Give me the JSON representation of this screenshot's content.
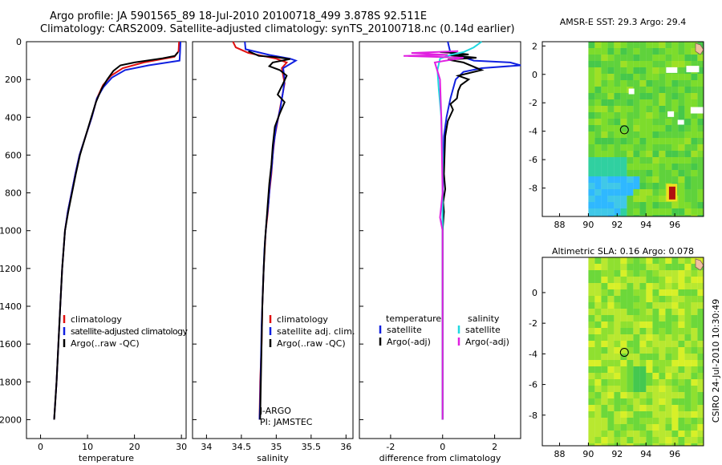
{
  "header": {
    "line1": "Argo profile: JA 5901565_89 18-Jul-2010 20100718_499 3.878S 92.511E",
    "line2": "Climatology: CARS2009. Satellite-adjusted climatology: synTS_20100718.nc (0.14d earlier)"
  },
  "credit": "CSIRO 24-Jul-2010 10:30:49",
  "chart_data": [
    {
      "type": "line",
      "xlabel": "temperature",
      "xlim": [
        -3,
        31
      ],
      "xticks": [
        "0",
        "10",
        "20",
        "30"
      ],
      "ylim": [
        2100,
        0
      ],
      "yticks": [
        "0",
        "200",
        "400",
        "600",
        "800",
        "1000",
        "1200",
        "1400",
        "1600",
        "1800",
        "2000"
      ],
      "legend": [
        "climatology",
        "satellite-adjusted climatology",
        "Argo(..raw -QC)"
      ],
      "colors": [
        "#e01010",
        "#1020e0",
        "#000000"
      ],
      "series": [
        {
          "name": "climatology",
          "points": [
            [
              29.5,
              0
            ],
            [
              29.4,
              50
            ],
            [
              28.5,
              80
            ],
            [
              22,
              110
            ],
            [
              17.5,
              140
            ],
            [
              15,
              180
            ],
            [
              13.3,
              230
            ],
            [
              12,
              300
            ],
            [
              10.9,
              400
            ],
            [
              9.6,
              500
            ],
            [
              8.3,
              600
            ],
            [
              7.4,
              700
            ],
            [
              6.6,
              800
            ],
            [
              5.8,
              900
            ],
            [
              5.2,
              1000
            ],
            [
              4.6,
              1200
            ],
            [
              4.2,
              1400
            ],
            [
              3.8,
              1600
            ],
            [
              3.4,
              1800
            ],
            [
              2.9,
              2000
            ]
          ]
        },
        {
          "name": "satellite-adjusted climatology",
          "points": [
            [
              29.8,
              0
            ],
            [
              29.7,
              60
            ],
            [
              29.6,
              100
            ],
            [
              23,
              125
            ],
            [
              18,
              150
            ],
            [
              15.2,
              190
            ],
            [
              13.4,
              240
            ],
            [
              12,
              300
            ],
            [
              10.9,
              400
            ],
            [
              9.6,
              500
            ],
            [
              8.3,
              600
            ],
            [
              7.4,
              700
            ],
            [
              6.6,
              800
            ],
            [
              5.8,
              900
            ],
            [
              5.2,
              1000
            ],
            [
              4.6,
              1200
            ],
            [
              4.2,
              1400
            ],
            [
              3.8,
              1600
            ],
            [
              3.4,
              1800
            ],
            [
              2.9,
              2000
            ]
          ]
        },
        {
          "name": "Argo(..raw -QC)",
          "points": [
            [
              29.3,
              55
            ],
            [
              28.6,
              75
            ],
            [
              26,
              88
            ],
            [
              20,
              110
            ],
            [
              17,
              125
            ],
            [
              15.5,
              155
            ],
            [
              14.2,
              200
            ],
            [
              13,
              250
            ],
            [
              11.8,
              320
            ],
            [
              10.8,
              400
            ],
            [
              9.6,
              500
            ],
            [
              8.4,
              600
            ],
            [
              7.5,
              700
            ],
            [
              6.7,
              800
            ],
            [
              5.9,
              900
            ],
            [
              5.2,
              1000
            ],
            [
              4.6,
              1200
            ],
            [
              4.2,
              1400
            ],
            [
              3.8,
              1600
            ],
            [
              3.4,
              1800
            ],
            [
              2.9,
              2000
            ]
          ]
        }
      ],
      "notes": []
    },
    {
      "type": "line",
      "xlabel": "salinity",
      "xlim": [
        33.8,
        36.1
      ],
      "xticks": [
        "34",
        "34.5",
        "35",
        "35.5",
        "36"
      ],
      "ylim": [
        2100,
        0
      ],
      "yticks": [],
      "legend": [
        "climatology",
        "satellite adj. clim.",
        "Argo(..raw -QC)"
      ],
      "colors": [
        "#e01010",
        "#1020e0",
        "#000000"
      ],
      "series": [
        {
          "name": "climatology",
          "points": [
            [
              34.38,
              0
            ],
            [
              34.42,
              30
            ],
            [
              34.6,
              60
            ],
            [
              35.0,
              90
            ],
            [
              35.15,
              110
            ],
            [
              35.08,
              140
            ],
            [
              35.1,
              180
            ],
            [
              35.12,
              220
            ],
            [
              35.08,
              300
            ],
            [
              35.03,
              400
            ],
            [
              34.98,
              500
            ],
            [
              34.95,
              600
            ],
            [
              34.93,
              700
            ],
            [
              34.9,
              800
            ],
            [
              34.88,
              900
            ],
            [
              34.85,
              1000
            ],
            [
              34.82,
              1200
            ],
            [
              34.8,
              1400
            ],
            [
              34.79,
              1600
            ],
            [
              34.77,
              1800
            ],
            [
              34.76,
              2000
            ]
          ]
        },
        {
          "name": "satellite adj. clim.",
          "points": [
            [
              34.55,
              0
            ],
            [
              34.56,
              40
            ],
            [
              34.9,
              70
            ],
            [
              35.2,
              90
            ],
            [
              35.28,
              100
            ],
            [
              35.1,
              140
            ],
            [
              35.12,
              200
            ],
            [
              35.1,
              260
            ],
            [
              35.06,
              350
            ],
            [
              35.0,
              450
            ],
            [
              34.96,
              550
            ],
            [
              34.94,
              650
            ],
            [
              34.91,
              750
            ],
            [
              34.89,
              850
            ],
            [
              34.86,
              950
            ],
            [
              34.83,
              1100
            ],
            [
              34.81,
              1300
            ],
            [
              34.79,
              1500
            ],
            [
              34.78,
              1700
            ],
            [
              34.77,
              1900
            ],
            [
              34.76,
              2000
            ]
          ]
        },
        {
          "name": "Argo(..raw -QC)",
          "points": [
            [
              34.6,
              50
            ],
            [
              34.75,
              75
            ],
            [
              35.0,
              82
            ],
            [
              35.2,
              92
            ],
            [
              34.95,
              110
            ],
            [
              34.9,
              130
            ],
            [
              35.05,
              150
            ],
            [
              35.15,
              180
            ],
            [
              35.1,
              220
            ],
            [
              35.02,
              280
            ],
            [
              35.12,
              320
            ],
            [
              35.05,
              380
            ],
            [
              34.98,
              450
            ],
            [
              34.95,
              550
            ],
            [
              34.93,
              650
            ],
            [
              34.9,
              750
            ],
            [
              34.88,
              850
            ],
            [
              34.86,
              950
            ],
            [
              34.84,
              1050
            ],
            [
              34.82,
              1200
            ],
            [
              34.8,
              1400
            ],
            [
              34.79,
              1600
            ],
            [
              34.78,
              1800
            ],
            [
              34.77,
              2000
            ]
          ]
        }
      ],
      "notes": [
        "J-ARGO",
        "PI: JAMSTEC"
      ]
    },
    {
      "type": "line",
      "xlabel": "difference from climatology",
      "xlim": [
        -3.2,
        3
      ],
      "xticks": [
        "-2",
        "0",
        "2"
      ],
      "ylim": [
        2100,
        0
      ],
      "yticks": [],
      "legend_headers": [
        "temperature",
        "salinity"
      ],
      "legend": [
        "satellite",
        "Argo(-adj)",
        "satellite",
        "Argo(-adj)"
      ],
      "colors": [
        "#1020e0",
        "#000000",
        "#20d8e0",
        "#e020e0"
      ],
      "series": [
        {
          "name": "temperature satellite",
          "points": [
            [
              0.2,
              0
            ],
            [
              0.3,
              60
            ],
            [
              1.2,
              100
            ],
            [
              2.6,
              110
            ],
            [
              3.0,
              125
            ],
            [
              1.5,
              140
            ],
            [
              0.8,
              160
            ],
            [
              0.5,
              200
            ],
            [
              0.3,
              300
            ],
            [
              0.15,
              400
            ],
            [
              0.05,
              500
            ],
            [
              0.02,
              700
            ],
            [
              0,
              900
            ],
            [
              0,
              1200
            ],
            [
              0,
              1600
            ],
            [
              0,
              2000
            ]
          ]
        },
        {
          "name": "temperature Argo(-adj)",
          "points": [
            [
              -0.1,
              55
            ],
            [
              0.5,
              60
            ],
            [
              1.0,
              68
            ],
            [
              0.3,
              72
            ],
            [
              1.3,
              85
            ],
            [
              0.2,
              95
            ],
            [
              0.8,
              110
            ],
            [
              1.5,
              150
            ],
            [
              0.6,
              180
            ],
            [
              1.0,
              200
            ],
            [
              0.7,
              230
            ],
            [
              0.6,
              260
            ],
            [
              0.55,
              300
            ],
            [
              0.3,
              330
            ],
            [
              0.4,
              360
            ],
            [
              0.2,
              420
            ],
            [
              0.1,
              500
            ],
            [
              0.05,
              700
            ],
            [
              0.1,
              780
            ],
            [
              0.02,
              850
            ],
            [
              0.05,
              900
            ],
            [
              0,
              1000
            ],
            [
              0,
              1400
            ],
            [
              0,
              2000
            ]
          ]
        },
        {
          "name": "salinity satellite",
          "points": [
            [
              1.5,
              0
            ],
            [
              1.2,
              30
            ],
            [
              0.8,
              55
            ],
            [
              0.3,
              70
            ],
            [
              -0.1,
              90
            ],
            [
              -0.2,
              150
            ],
            [
              -0.15,
              250
            ],
            [
              -0.05,
              400
            ],
            [
              0,
              600
            ],
            [
              0,
              1000
            ],
            [
              0,
              2000
            ]
          ]
        },
        {
          "name": "salinity Argo(-adj)",
          "points": [
            [
              0.6,
              50
            ],
            [
              -1.2,
              60
            ],
            [
              0.2,
              70
            ],
            [
              -1.5,
              75
            ],
            [
              0.8,
              85
            ],
            [
              -0.3,
              110
            ],
            [
              -0.1,
              200
            ],
            [
              -0.05,
              400
            ],
            [
              0,
              800
            ],
            [
              -0.1,
              930
            ],
            [
              0,
              1000
            ],
            [
              0,
              2000
            ]
          ]
        }
      ],
      "notes": []
    },
    {
      "type": "heatmap",
      "title": "AMSR-E SST: 29.3 Argo: 29.4",
      "xlim": [
        86.8,
        98
      ],
      "ylim": [
        -10,
        2.3
      ],
      "xticks": [
        "88",
        "90",
        "92",
        "94",
        "96"
      ],
      "yticks": [
        "2",
        "0",
        "-2",
        "-4",
        "-6",
        "-8"
      ],
      "marker": [
        92.5,
        -3.9
      ]
    },
    {
      "type": "heatmap",
      "title": "Altimetric SLA: 0.16 Argo: 0.078",
      "xlim": [
        86.8,
        98
      ],
      "ylim": [
        -10,
        2.3
      ],
      "xticks": [
        "88",
        "90",
        "92",
        "94",
        "96"
      ],
      "yticks": [
        "0",
        "-2",
        "-4",
        "-6",
        "-8"
      ],
      "marker": [
        92.5,
        -3.9
      ]
    }
  ]
}
